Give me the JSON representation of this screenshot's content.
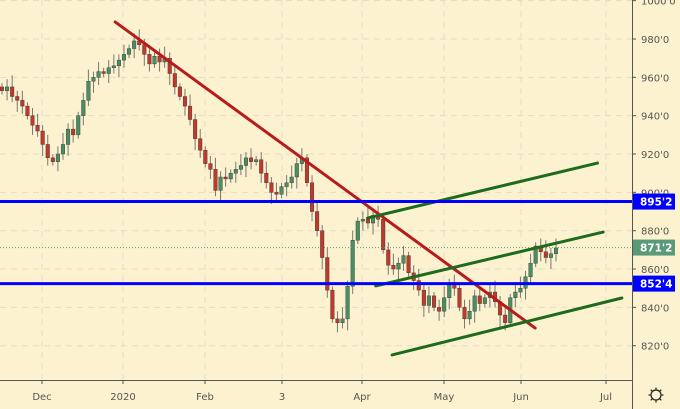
{
  "chart_data": {
    "type": "candlestick",
    "x_ticks": [
      "Dec",
      "2020",
      "Feb",
      "3",
      "Apr",
      "May",
      "Jun",
      "Jul"
    ],
    "y_ticks": [
      "820'0",
      "840'0",
      "860'0",
      "880'0",
      "900'0",
      "920'0",
      "940'0",
      "960'0",
      "980'0",
      "1000'0"
    ],
    "y_tick_values": [
      820,
      840,
      860,
      880,
      900,
      920,
      940,
      960,
      980,
      1000
    ],
    "ylim": [
      812,
      1002
    ],
    "grid": true,
    "first_open": 955,
    "closes": [
      953,
      955,
      950,
      948,
      945,
      940,
      935,
      932,
      925,
      918,
      916,
      920,
      925,
      933,
      930,
      940,
      948,
      958,
      960,
      963,
      962,
      965,
      966,
      969,
      972,
      975,
      979,
      977,
      972,
      967,
      971,
      968,
      970,
      962,
      955,
      950,
      945,
      938,
      928,
      922,
      915,
      912,
      901,
      908,
      907,
      910,
      912,
      914,
      918,
      916,
      917,
      910,
      905,
      900,
      899,
      903,
      905,
      908,
      915,
      918,
      905,
      890,
      880,
      866,
      849,
      834,
      832,
      834,
      851,
      875,
      885,
      886,
      884,
      888,
      886,
      870,
      862,
      860,
      863,
      867,
      858,
      854,
      849,
      841,
      846,
      840,
      838,
      845,
      852,
      850,
      840,
      834,
      838,
      846,
      842,
      845,
      848,
      843,
      836,
      832,
      845,
      848,
      850,
      856,
      863,
      872,
      869,
      866,
      868,
      871
    ],
    "horizontal_lines": [
      {
        "price": 895.2,
        "label": "895'2",
        "color": "#0000ff"
      },
      {
        "price": 852.4,
        "label": "852'4",
        "color": "#0000ff"
      }
    ],
    "last_price": {
      "price": 871.2,
      "label": "871'2",
      "color": "#5a9a78"
    },
    "trend_lines": [
      {
        "color": "#b71c1c",
        "from": [
          "2019-12-29",
          988.9
        ],
        "to": [
          "2020-06-06",
          829.2
        ]
      },
      {
        "color": "#1e6b1e",
        "from": [
          "2020-04-03",
          886.6
        ],
        "to": [
          "2020-06-28",
          915.3
        ]
      },
      {
        "color": "#1e6b1e",
        "from": [
          "2020-04-06",
          851.2
        ],
        "to": [
          "2020-06-30",
          879.3
        ]
      },
      {
        "color": "#1e6b1e",
        "from": [
          "2020-04-12",
          815.2
        ],
        "to": [
          "2020-07-07",
          844.9
        ]
      }
    ],
    "colors": {
      "up": "#4a8f62",
      "down": "#c0392b",
      "background": "#fdf2cf"
    }
  },
  "settings_icon": "gear-icon"
}
